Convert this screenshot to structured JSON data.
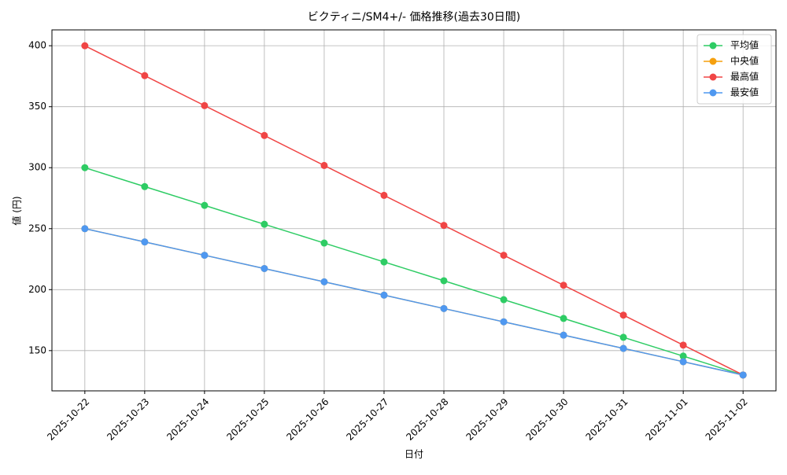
{
  "chart_data": {
    "type": "line",
    "title": "ビクティニ/SM4+/- 価格推移(過去30日間)",
    "x_label": "日付",
    "y_label": "値 (円)",
    "categories": [
      "2025-10-22",
      "2025-10-23",
      "2025-10-24",
      "2025-10-25",
      "2025-10-26",
      "2025-10-27",
      "2025-10-28",
      "2025-10-29",
      "2025-10-30",
      "2025-10-31",
      "2025-11-01",
      "2025-11-02"
    ],
    "series": [
      {
        "name": "平均値",
        "color": "#2ecc64",
        "values": [
          300,
          284.5,
          269.1,
          253.6,
          238.2,
          222.7,
          207.3,
          191.8,
          176.4,
          160.9,
          145.5,
          130
        ]
      },
      {
        "name": "中央値",
        "color": "#f5a00f",
        "values": [
          250,
          239.1,
          228.2,
          217.3,
          206.4,
          195.5,
          184.5,
          173.6,
          162.7,
          151.8,
          140.9,
          130
        ]
      },
      {
        "name": "最高値",
        "color": "#f04545",
        "values": [
          400,
          375.5,
          350.9,
          326.4,
          301.8,
          277.3,
          252.7,
          228.2,
          203.6,
          179.1,
          154.5,
          130
        ]
      },
      {
        "name": "最安値",
        "color": "#4f98f0",
        "values": [
          250,
          239.1,
          228.2,
          217.3,
          206.4,
          195.5,
          184.5,
          173.6,
          162.7,
          151.8,
          140.9,
          130
        ]
      }
    ],
    "ylim": [
      117,
      413
    ],
    "yticks": [
      150,
      200,
      250,
      300,
      350,
      400
    ],
    "grid": true,
    "legend": "upper-right"
  }
}
